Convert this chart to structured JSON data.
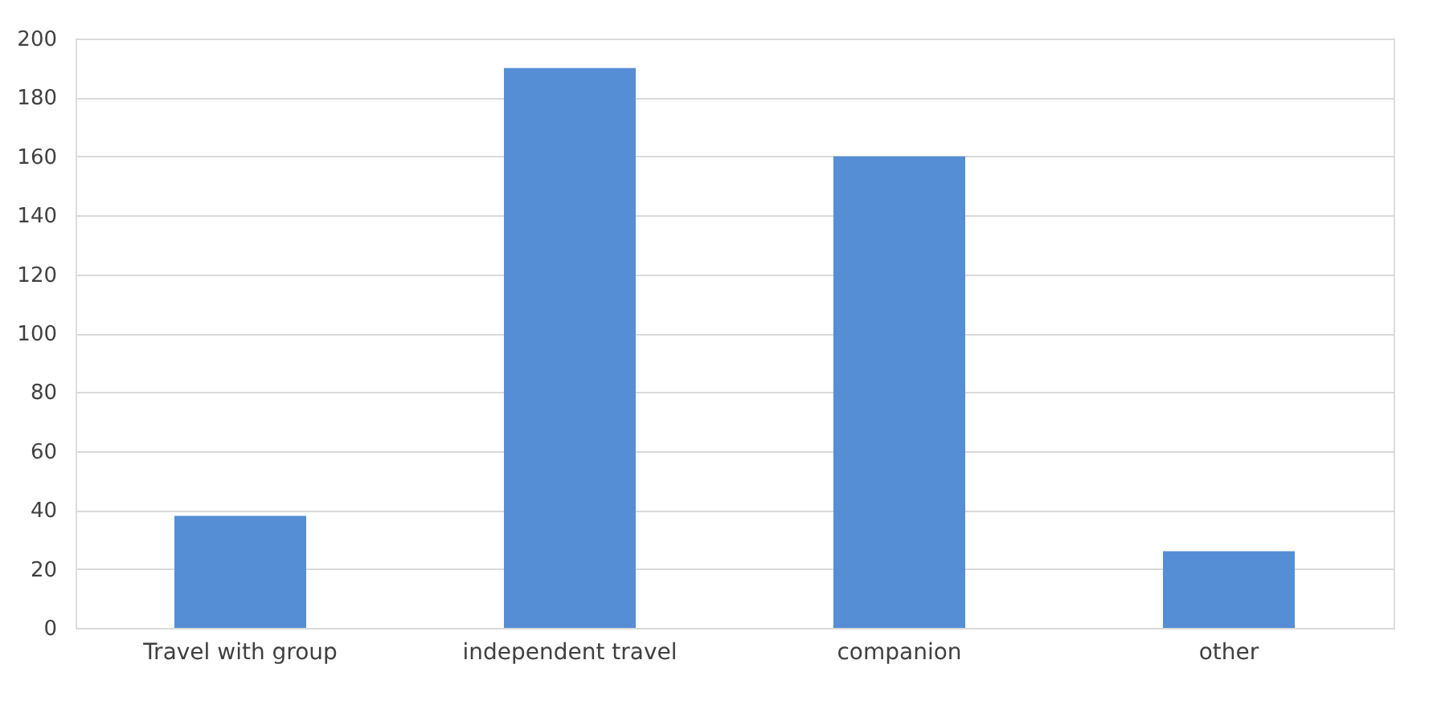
{
  "chart_data": {
    "type": "bar",
    "categories": [
      "Travel with group",
      "independent travel",
      "companion",
      "other"
    ],
    "values": [
      38,
      190,
      160,
      26
    ],
    "color": "#558ed5",
    "ylim": [
      0,
      200
    ],
    "yticks": [
      0,
      20,
      40,
      60,
      80,
      100,
      120,
      140,
      160,
      180,
      200
    ],
    "grid": "y"
  }
}
